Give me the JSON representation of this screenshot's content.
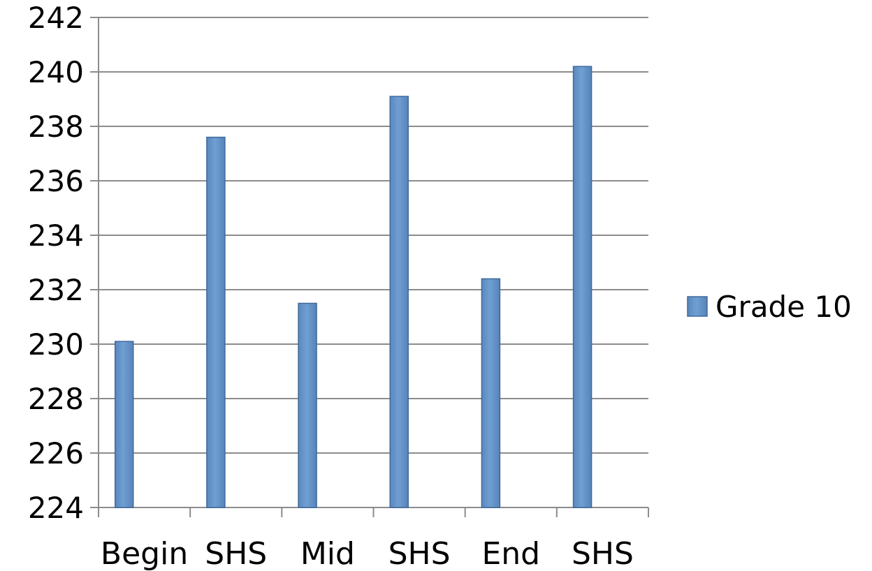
{
  "chart_data": {
    "type": "bar",
    "categories": [
      "Begin",
      "SHS",
      "Mid",
      "SHS",
      "End",
      "SHS"
    ],
    "series": [
      {
        "name": "Grade 10",
        "values": [
          230.1,
          237.6,
          231.5,
          239.1,
          232.4,
          240.2
        ]
      }
    ],
    "yticks": [
      "224",
      "226",
      "228",
      "230",
      "232",
      "234",
      "236",
      "238",
      "240",
      "242"
    ],
    "ylim": [
      224,
      242
    ],
    "grid": true,
    "legend": "right",
    "colors": {
      "bar_fill": "#6494c8",
      "bar_stroke": "#3f6a9c",
      "grid": "#8c8c8c",
      "axis": "#8c8c8c"
    }
  }
}
